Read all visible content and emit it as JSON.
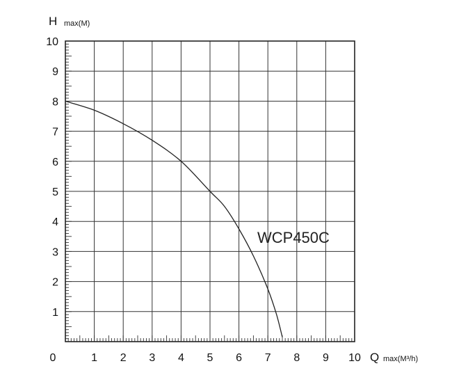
{
  "chart_data": {
    "type": "line",
    "title": "",
    "xlabel": "Q",
    "xlabel_unit": "max(M³/h)",
    "ylabel": "H",
    "ylabel_unit": "max(M)",
    "xlim": [
      0,
      10
    ],
    "ylim": [
      0,
      10
    ],
    "x_ticks": [
      "0",
      "1",
      "2",
      "3",
      "4",
      "5",
      "6",
      "7",
      "8",
      "9",
      "10"
    ],
    "y_ticks": [
      "1",
      "2",
      "3",
      "4",
      "5",
      "6",
      "7",
      "8",
      "9",
      "10"
    ],
    "grid": true,
    "annotation": "WCP450C",
    "series": [
      {
        "x": [
          0,
          1,
          2,
          3,
          4,
          5,
          5.5,
          6,
          6.5,
          7,
          7.3,
          7.5
        ],
        "y": [
          8,
          7.7,
          7.25,
          6.7,
          6,
          5,
          4.5,
          3.75,
          2.85,
          1.75,
          0.9,
          0.15
        ]
      }
    ]
  }
}
